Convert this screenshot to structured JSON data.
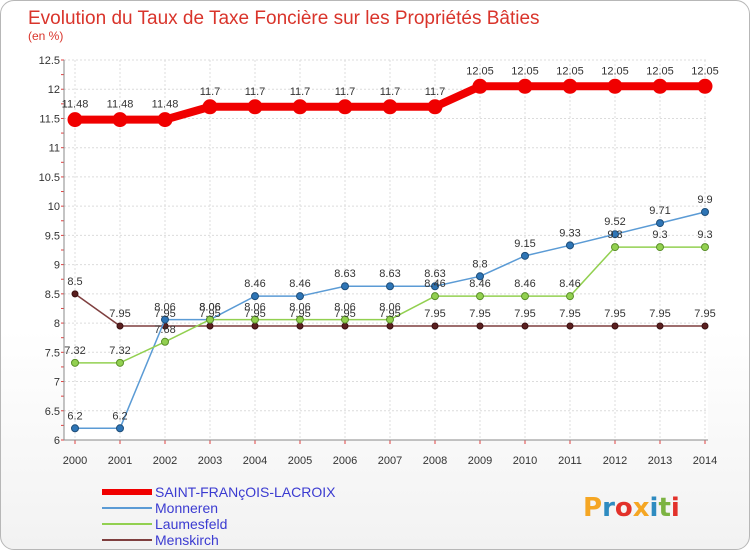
{
  "chart_data": {
    "type": "line",
    "title": "Evolution du Taux de Taxe Foncière sur les Propriétés Bâties",
    "subtitle": "(en %)",
    "xlabel": "",
    "ylabel": "",
    "ylim": [
      6,
      12.5
    ],
    "yticks": [
      "6",
      "6.5",
      "7",
      "7.5",
      "8",
      "8.5",
      "9",
      "9.5",
      "10",
      "10.5",
      "11",
      "11.5",
      "12",
      "12.5"
    ],
    "categories": [
      "2000",
      "2001",
      "2002",
      "2003",
      "2004",
      "2005",
      "2006",
      "2007",
      "2008",
      "2009",
      "2010",
      "2011",
      "2012",
      "2013",
      "2014"
    ],
    "grid": true,
    "legend_position": "bottom-left",
    "series": [
      {
        "name": "SAINT-FRANçOIS-LACROIX",
        "color": "#f00000",
        "values": [
          11.48,
          11.48,
          11.48,
          11.7,
          11.7,
          11.7,
          11.7,
          11.7,
          11.7,
          12.05,
          12.05,
          12.05,
          12.05,
          12.05,
          12.05
        ],
        "labels": [
          "11.48",
          "11.48",
          "11.48",
          "11.7",
          "11.7",
          "11.7",
          "11.7",
          "11.7",
          "11.7",
          "12.05",
          "12.05",
          "12.05",
          "12.05",
          "12.05",
          "12.05"
        ]
      },
      {
        "name": "Monneren",
        "color": "#5b9bd5",
        "values": [
          6.2,
          6.2,
          8.06,
          8.06,
          8.46,
          8.46,
          8.63,
          8.63,
          8.63,
          8.8,
          9.15,
          9.33,
          9.52,
          9.71,
          9.9
        ],
        "labels": [
          "6.2",
          "6.2",
          "8.06",
          "8.06",
          "8.46",
          "8.46",
          "8.63",
          "8.63",
          "8.63",
          "8.8",
          "9.15",
          "9.33",
          "9.52",
          "9.71",
          "9.9"
        ]
      },
      {
        "name": "Laumesfeld",
        "color": "#92d050",
        "values": [
          7.32,
          7.32,
          7.68,
          8.06,
          8.06,
          8.06,
          8.06,
          8.06,
          8.46,
          8.46,
          8.46,
          8.46,
          9.3,
          9.3,
          9.3
        ],
        "labels": [
          "7.32",
          "7.32",
          "7.68",
          "8.06",
          "8.06",
          "8.06",
          "8.06",
          "8.06",
          "8.46",
          "8.46",
          "8.46",
          "8.46",
          "9.3",
          "9.3",
          "9.3"
        ]
      },
      {
        "name": "Menskirch",
        "color": "#7f3f3f",
        "values": [
          8.5,
          7.95,
          7.95,
          7.95,
          7.95,
          7.95,
          7.95,
          7.95,
          7.95,
          7.95,
          7.95,
          7.95,
          7.95,
          7.95,
          7.95
        ],
        "labels": [
          "8.5",
          "7.95",
          "7.95",
          "7.95",
          "7.95",
          "7.95",
          "7.95",
          "7.95",
          "7.95",
          "7.95",
          "7.95",
          "7.95",
          "7.95",
          "7.95",
          "7.95"
        ]
      }
    ]
  },
  "logo": {
    "letters": [
      "P",
      "r",
      "o",
      "x",
      "i",
      "t",
      "i"
    ],
    "colors": [
      "#f5a623",
      "#2e8bc0",
      "#e2312a",
      "#f5a623",
      "#2e8bc0",
      "#7cb342",
      "#e2312a"
    ]
  }
}
